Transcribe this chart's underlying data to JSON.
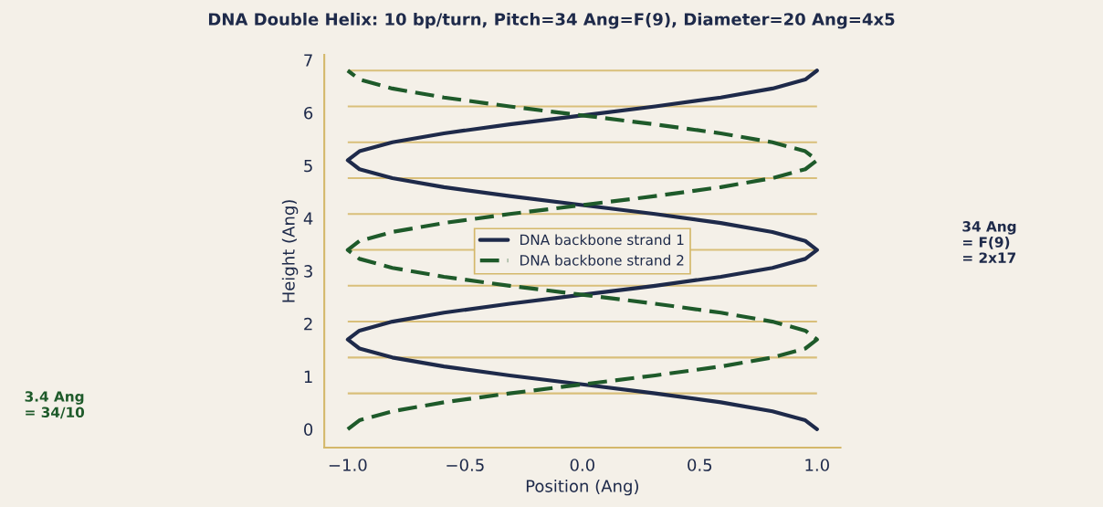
{
  "chart_data": {
    "type": "line",
    "title": "DNA Double Helix: 10 bp/turn, Pitch=34 Ang=F(9), Diameter=20 Ang=4x5",
    "xlabel": "Position (Ang)",
    "ylabel": "Height (Ang)",
    "xlim": [
      -1.1,
      1.1
    ],
    "xticks": [
      {
        "value": -1.0,
        "label": "−1.0"
      },
      {
        "value": -0.5,
        "label": "−0.5"
      },
      {
        "value": 0.0,
        "label": "0.0"
      },
      {
        "value": 0.5,
        "label": "0.5"
      },
      {
        "value": 1.0,
        "label": "1.0"
      }
    ],
    "ylim": [
      -0.35,
      7.1
    ],
    "yticks": [
      0,
      1,
      2,
      3,
      4,
      5,
      6,
      7
    ],
    "series": [
      {
        "name": "DNA backbone strand 1",
        "color": "#1e2a4a",
        "line_style": "solid",
        "x": [
          1.0,
          0.95,
          0.81,
          0.59,
          0.31,
          0.0,
          -0.31,
          -0.59,
          -0.81,
          -0.95,
          -1.0,
          -0.95,
          -0.81,
          -0.59,
          -0.31,
          0.0,
          0.31,
          0.59,
          0.81,
          0.95,
          1.0,
          0.95,
          0.81,
          0.59,
          0.31,
          0.0,
          -0.31,
          -0.59,
          -0.81,
          -0.95,
          -1.0,
          -0.95,
          -0.81,
          -0.59,
          -0.31,
          0.0,
          0.31,
          0.59,
          0.81,
          0.95,
          1.0
        ],
        "values": [
          0.0,
          0.17,
          0.34,
          0.51,
          0.68,
          0.85,
          1.02,
          1.19,
          1.36,
          1.53,
          1.7,
          1.87,
          2.04,
          2.21,
          2.38,
          2.55,
          2.72,
          2.89,
          3.06,
          3.23,
          3.4,
          3.57,
          3.74,
          3.91,
          4.08,
          4.25,
          4.42,
          4.59,
          4.76,
          4.93,
          5.1,
          5.27,
          5.44,
          5.61,
          5.78,
          5.95,
          6.12,
          6.29,
          6.46,
          6.63,
          6.8
        ]
      },
      {
        "name": "DNA backbone strand 2",
        "color": "#1e5a2a",
        "line_style": "dashed",
        "x": [
          -1.0,
          -0.95,
          -0.81,
          -0.59,
          -0.31,
          0.0,
          0.31,
          0.59,
          0.81,
          0.95,
          1.0,
          0.95,
          0.81,
          0.59,
          0.31,
          0.0,
          -0.31,
          -0.59,
          -0.81,
          -0.95,
          -1.0,
          -0.95,
          -0.81,
          -0.59,
          -0.31,
          0.0,
          0.31,
          0.59,
          0.81,
          0.95,
          1.0,
          0.95,
          0.81,
          0.59,
          0.31,
          0.0,
          -0.31,
          -0.59,
          -0.81,
          -0.95,
          -1.0
        ],
        "values": [
          0.0,
          0.17,
          0.34,
          0.51,
          0.68,
          0.85,
          1.02,
          1.19,
          1.36,
          1.53,
          1.7,
          1.87,
          2.04,
          2.21,
          2.38,
          2.55,
          2.72,
          2.89,
          3.06,
          3.23,
          3.4,
          3.57,
          3.74,
          3.91,
          4.08,
          4.25,
          4.42,
          4.59,
          4.76,
          4.93,
          5.1,
          5.27,
          5.44,
          5.61,
          5.78,
          5.95,
          6.12,
          6.29,
          6.46,
          6.63,
          6.8
        ]
      }
    ],
    "ref_lines": [
      {
        "axis": "y",
        "value": 0.68,
        "color": "#d9bf7a"
      },
      {
        "axis": "y",
        "value": 1.36,
        "color": "#d9bf7a"
      },
      {
        "axis": "y",
        "value": 2.04,
        "color": "#d9bf7a"
      },
      {
        "axis": "y",
        "value": 2.72,
        "color": "#d9bf7a"
      },
      {
        "axis": "y",
        "value": 3.4,
        "color": "#d9bf7a"
      },
      {
        "axis": "y",
        "value": 4.08,
        "color": "#d9bf7a"
      },
      {
        "axis": "y",
        "value": 4.76,
        "color": "#d9bf7a"
      },
      {
        "axis": "y",
        "value": 5.44,
        "color": "#d9bf7a"
      },
      {
        "axis": "y",
        "value": 6.12,
        "color": "#d9bf7a"
      },
      {
        "axis": "y",
        "value": 6.8,
        "color": "#d9bf7a"
      }
    ],
    "annotations": [
      "34 Ang\n= F(9)\n= 2x17",
      "3.4 Ang\n= 34/10"
    ],
    "legend": "center",
    "grid": false
  }
}
